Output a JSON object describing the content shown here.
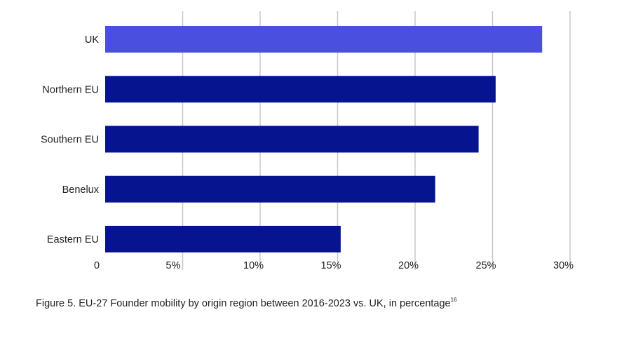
{
  "chart_data": {
    "type": "bar",
    "orientation": "horizontal",
    "title": "",
    "xlabel": "",
    "ylabel": "",
    "categories": [
      "UK",
      "Northern EU",
      "Southern EU",
      "Benelux",
      "Eastern EU"
    ],
    "values": [
      28.2,
      25.2,
      24.1,
      21.3,
      15.2
    ],
    "xlim": [
      0,
      30
    ],
    "xticks": [
      0,
      5,
      10,
      15,
      20,
      25,
      30
    ],
    "xtick_labels": [
      "0",
      "5%",
      "10%",
      "15%",
      "20%",
      "25%",
      "30%"
    ],
    "grid": true,
    "colors": {
      "highlight": "#4b4fe0",
      "default": "#07148f",
      "grid": "#c8c8c8"
    },
    "highlight_category": "UK"
  },
  "caption": {
    "text": "Figure 5. EU-27 Founder mobility by origin region between 2016-2023 vs. UK, in percentage",
    "footnote": "16"
  }
}
